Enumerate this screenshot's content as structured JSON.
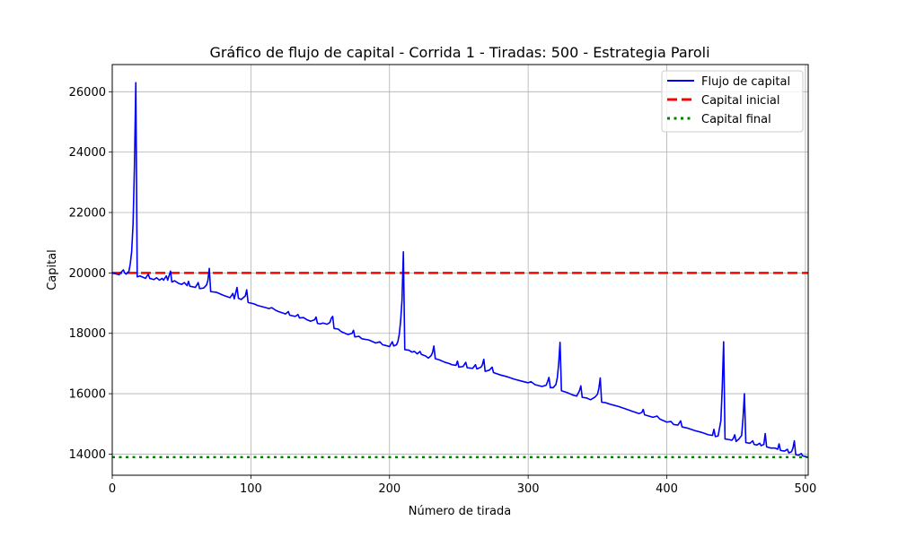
{
  "chart_data": {
    "type": "line",
    "title": "Gráfico de flujo de capital - Corrida 1 - Tiradas: 500 - Estrategia Paroli",
    "xlabel": "Número de tirada",
    "ylabel": "Capital",
    "xlim": [
      0,
      502
    ],
    "ylim": [
      13300,
      26900
    ],
    "x_ticks": [
      0,
      100,
      200,
      300,
      400,
      500
    ],
    "y_ticks": [
      14000,
      16000,
      18000,
      20000,
      22000,
      24000,
      26000
    ],
    "grid": true,
    "legend_position": "top-right",
    "series": [
      {
        "name": "Flujo de capital",
        "color": "#0000ff",
        "style": "solid",
        "points": [
          [
            0,
            20000
          ],
          [
            5,
            19940
          ],
          [
            7,
            20050
          ],
          [
            8,
            20100
          ],
          [
            9,
            20000
          ],
          [
            10,
            19960
          ],
          [
            12,
            20050
          ],
          [
            13,
            20300
          ],
          [
            14,
            20700
          ],
          [
            15,
            21600
          ],
          [
            16,
            23500
          ],
          [
            17,
            26300
          ],
          [
            18,
            19870
          ],
          [
            20,
            19900
          ],
          [
            22,
            19860
          ],
          [
            24,
            19820
          ],
          [
            26,
            19960
          ],
          [
            27,
            19820
          ],
          [
            30,
            19780
          ],
          [
            32,
            19840
          ],
          [
            34,
            19760
          ],
          [
            36,
            19820
          ],
          [
            37,
            19760
          ],
          [
            39,
            19900
          ],
          [
            40,
            19760
          ],
          [
            42,
            20060
          ],
          [
            43,
            19700
          ],
          [
            45,
            19740
          ],
          [
            48,
            19650
          ],
          [
            50,
            19620
          ],
          [
            52,
            19680
          ],
          [
            54,
            19580
          ],
          [
            55,
            19720
          ],
          [
            56,
            19560
          ],
          [
            60,
            19520
          ],
          [
            62,
            19680
          ],
          [
            63,
            19480
          ],
          [
            66,
            19500
          ],
          [
            68,
            19600
          ],
          [
            69,
            19750
          ],
          [
            70,
            20150
          ],
          [
            71,
            19380
          ],
          [
            75,
            19360
          ],
          [
            80,
            19260
          ],
          [
            85,
            19180
          ],
          [
            87,
            19320
          ],
          [
            88,
            19140
          ],
          [
            90,
            19520
          ],
          [
            91,
            19160
          ],
          [
            93,
            19120
          ],
          [
            96,
            19240
          ],
          [
            97,
            19440
          ],
          [
            98,
            19020
          ],
          [
            102,
            18980
          ],
          [
            105,
            18920
          ],
          [
            110,
            18860
          ],
          [
            113,
            18820
          ],
          [
            115,
            18850
          ],
          [
            118,
            18760
          ],
          [
            120,
            18720
          ],
          [
            125,
            18640
          ],
          [
            127,
            18720
          ],
          [
            128,
            18600
          ],
          [
            132,
            18560
          ],
          [
            134,
            18620
          ],
          [
            135,
            18510
          ],
          [
            138,
            18520
          ],
          [
            140,
            18460
          ],
          [
            143,
            18400
          ],
          [
            146,
            18450
          ],
          [
            147,
            18540
          ],
          [
            148,
            18330
          ],
          [
            150,
            18310
          ],
          [
            152,
            18340
          ],
          [
            155,
            18300
          ],
          [
            157,
            18360
          ],
          [
            158,
            18500
          ],
          [
            159,
            18560
          ],
          [
            160,
            18160
          ],
          [
            163,
            18140
          ],
          [
            165,
            18060
          ],
          [
            170,
            17960
          ],
          [
            173,
            18000
          ],
          [
            174,
            18100
          ],
          [
            175,
            17880
          ],
          [
            178,
            17900
          ],
          [
            180,
            17820
          ],
          [
            185,
            17780
          ],
          [
            190,
            17680
          ],
          [
            193,
            17720
          ],
          [
            195,
            17620
          ],
          [
            197,
            17600
          ],
          [
            200,
            17560
          ],
          [
            202,
            17720
          ],
          [
            203,
            17580
          ],
          [
            205,
            17620
          ],
          [
            206,
            17720
          ],
          [
            207,
            17960
          ],
          [
            208,
            18400
          ],
          [
            209,
            19100
          ],
          [
            210,
            20700
          ],
          [
            211,
            17460
          ],
          [
            214,
            17440
          ],
          [
            216,
            17380
          ],
          [
            218,
            17400
          ],
          [
            220,
            17320
          ],
          [
            222,
            17400
          ],
          [
            223,
            17300
          ],
          [
            226,
            17250
          ],
          [
            228,
            17180
          ],
          [
            230,
            17260
          ],
          [
            231,
            17360
          ],
          [
            232,
            17580
          ],
          [
            233,
            17160
          ],
          [
            236,
            17120
          ],
          [
            240,
            17040
          ],
          [
            243,
            17000
          ],
          [
            245,
            16960
          ],
          [
            248,
            16940
          ],
          [
            249,
            17080
          ],
          [
            250,
            16880
          ],
          [
            253,
            16900
          ],
          [
            255,
            17040
          ],
          [
            256,
            16860
          ],
          [
            260,
            16840
          ],
          [
            262,
            16960
          ],
          [
            263,
            16820
          ],
          [
            266,
            16880
          ],
          [
            267,
            16960
          ],
          [
            268,
            17140
          ],
          [
            269,
            16740
          ],
          [
            272,
            16780
          ],
          [
            274,
            16880
          ],
          [
            275,
            16700
          ],
          [
            280,
            16620
          ],
          [
            285,
            16560
          ],
          [
            290,
            16480
          ],
          [
            295,
            16420
          ],
          [
            300,
            16360
          ],
          [
            302,
            16400
          ],
          [
            305,
            16300
          ],
          [
            310,
            16240
          ],
          [
            313,
            16280
          ],
          [
            314,
            16400
          ],
          [
            315,
            16540
          ],
          [
            316,
            16200
          ],
          [
            318,
            16200
          ],
          [
            320,
            16300
          ],
          [
            321,
            16520
          ],
          [
            322,
            16980
          ],
          [
            323,
            17700
          ],
          [
            324,
            16100
          ],
          [
            328,
            16040
          ],
          [
            332,
            15960
          ],
          [
            335,
            15920
          ],
          [
            337,
            16100
          ],
          [
            338,
            16260
          ],
          [
            339,
            15880
          ],
          [
            342,
            15860
          ],
          [
            345,
            15800
          ],
          [
            348,
            15880
          ],
          [
            350,
            15980
          ],
          [
            351,
            16180
          ],
          [
            352,
            16520
          ],
          [
            353,
            15720
          ],
          [
            356,
            15700
          ],
          [
            360,
            15640
          ],
          [
            365,
            15580
          ],
          [
            370,
            15500
          ],
          [
            375,
            15420
          ],
          [
            380,
            15340
          ],
          [
            382,
            15380
          ],
          [
            383,
            15480
          ],
          [
            384,
            15300
          ],
          [
            390,
            15220
          ],
          [
            393,
            15260
          ],
          [
            395,
            15160
          ],
          [
            400,
            15060
          ],
          [
            403,
            15080
          ],
          [
            405,
            14980
          ],
          [
            408,
            14960
          ],
          [
            410,
            15100
          ],
          [
            411,
            14900
          ],
          [
            415,
            14860
          ],
          [
            420,
            14780
          ],
          [
            425,
            14720
          ],
          [
            430,
            14640
          ],
          [
            433,
            14620
          ],
          [
            434,
            14820
          ],
          [
            435,
            14580
          ],
          [
            437,
            14600
          ],
          [
            439,
            15100
          ],
          [
            440,
            16200
          ],
          [
            441,
            17720
          ],
          [
            442,
            14500
          ],
          [
            445,
            14480
          ],
          [
            447,
            14460
          ],
          [
            448,
            14520
          ],
          [
            449,
            14640
          ],
          [
            450,
            14420
          ],
          [
            452,
            14500
          ],
          [
            454,
            14620
          ],
          [
            455,
            15200
          ],
          [
            456,
            16000
          ],
          [
            457,
            14380
          ],
          [
            460,
            14360
          ],
          [
            462,
            14440
          ],
          [
            463,
            14320
          ],
          [
            465,
            14300
          ],
          [
            467,
            14360
          ],
          [
            468,
            14280
          ],
          [
            470,
            14320
          ],
          [
            471,
            14680
          ],
          [
            472,
            14240
          ],
          [
            475,
            14200
          ],
          [
            478,
            14200
          ],
          [
            480,
            14160
          ],
          [
            481,
            14340
          ],
          [
            482,
            14120
          ],
          [
            485,
            14100
          ],
          [
            487,
            14160
          ],
          [
            488,
            14040
          ],
          [
            490,
            14080
          ],
          [
            491,
            14200
          ],
          [
            492,
            14440
          ],
          [
            493,
            13980
          ],
          [
            495,
            13960
          ],
          [
            497,
            14020
          ],
          [
            498,
            13940
          ],
          [
            500,
            13920
          ],
          [
            501,
            13900
          ]
        ]
      },
      {
        "name": "Capital inicial",
        "color": "#ff0000",
        "style": "dashed",
        "constant": 20000
      },
      {
        "name": "Capital final",
        "color": "#008000",
        "style": "dotted",
        "constant": 13900
      }
    ]
  }
}
